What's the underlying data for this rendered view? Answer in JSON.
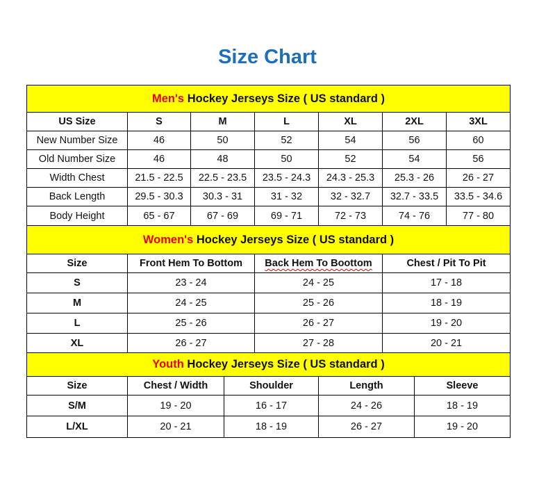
{
  "title": "Size Chart",
  "colors": {
    "title": "#1b6fbd",
    "section_bg": "#ffff00",
    "section_accent": "#e8000b"
  },
  "sections": [
    {
      "accent": "Men's",
      "heading": "Hockey Jerseys Size ( US standard )",
      "headers": [
        "US Size",
        "S",
        "M",
        "L",
        "XL",
        "2XL",
        "3XL"
      ],
      "rows": [
        [
          "New Number Size",
          "46",
          "50",
          "52",
          "54",
          "56",
          "60"
        ],
        [
          "Old Number Size",
          "46",
          "48",
          "50",
          "52",
          "54",
          "56"
        ],
        [
          "Width Chest",
          "21.5 - 22.5",
          "22.5 - 23.5",
          "23.5 - 24.3",
          "24.3 - 25.3",
          "25.3 - 26",
          "26 - 27"
        ],
        [
          "Back Length",
          "29.5 - 30.3",
          "30.3 - 31",
          "31 - 32",
          "32 - 32.7",
          "32.7 - 33.5",
          "33.5 - 34.6"
        ],
        [
          "Body Height",
          "65 - 67",
          "67 - 69",
          "69 - 71",
          "72 - 73",
          "74 - 76",
          "77 - 80"
        ]
      ]
    },
    {
      "accent": "Women's",
      "heading": "Hockey Jerseys Size ( US standard )",
      "headers": [
        "Size",
        "Front Hem To Bottom",
        "Back Hem To Boottom",
        "Chest / Pit To Pit"
      ],
      "rows": [
        [
          "S",
          "23 - 24",
          "24 - 25",
          "17 - 18"
        ],
        [
          "M",
          "24 - 25",
          "25 - 26",
          "18 - 19"
        ],
        [
          "L",
          "25 - 26",
          "26 - 27",
          "19 - 20"
        ],
        [
          "XL",
          "26 - 27",
          "27 - 28",
          "20 - 21"
        ]
      ]
    },
    {
      "accent": "Youth",
      "heading": "Hockey Jerseys Size ( US standard )",
      "headers": [
        "Size",
        "Chest / Width",
        "Shoulder",
        "Length",
        "Sleeve"
      ],
      "rows": [
        [
          "S/M",
          "19 - 20",
          "16 - 17",
          "24 - 26",
          "18 - 19"
        ],
        [
          "L/XL",
          "20 - 21",
          "18 - 19",
          "26 - 27",
          "19 - 20"
        ]
      ]
    }
  ]
}
